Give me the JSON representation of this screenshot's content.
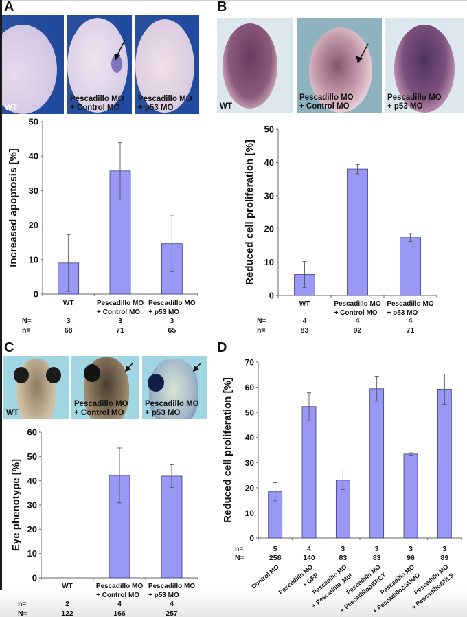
{
  "panels": {
    "A": {
      "letter": "A",
      "photos": [
        {
          "caption": "WT"
        },
        {
          "caption": "Pescadillo MO\n+ Control MO"
        },
        {
          "caption": "Pescadillo MO\n+ p53 MO"
        }
      ]
    },
    "B": {
      "letter": "B",
      "photos": [
        {
          "caption": "WT"
        },
        {
          "caption": "Pescadillo MO\n+ Control MO"
        },
        {
          "caption": "Pescadillo MO\n+ p53 MO"
        }
      ]
    },
    "C": {
      "letter": "C",
      "photos": [
        {
          "caption": "WT"
        },
        {
          "caption": "Pescadillo MO\n+ Control MO"
        },
        {
          "caption": "Pescadillo MO\n+ p53 MO"
        }
      ]
    },
    "D": {
      "letter": "D"
    }
  },
  "colors": {
    "bar": "#9999f5",
    "bar_edge": "#3a3a8a",
    "axis": "#666666"
  },
  "chart_data": [
    {
      "id": "A",
      "type": "bar",
      "title": "",
      "xlabel": "",
      "ylabel": "Increased apoptosis [%]",
      "ylim": [
        0,
        50
      ],
      "yticks": [
        0,
        10,
        20,
        30,
        40,
        50
      ],
      "grid": false,
      "categories": [
        [
          "WT"
        ],
        [
          "Pescadillo MO",
          "+ Control MO"
        ],
        [
          "Pescadillo MO",
          "+ p53 MO"
        ]
      ],
      "values": [
        9,
        35.7,
        14.6
      ],
      "errors": [
        8.2,
        8.2,
        8.1
      ],
      "count_rows": [
        {
          "label": "N=",
          "values": [
            "3",
            "3",
            "3"
          ]
        },
        {
          "label": "n=",
          "values": [
            "68",
            "71",
            "65"
          ]
        }
      ]
    },
    {
      "id": "B",
      "type": "bar",
      "title": "",
      "xlabel": "",
      "ylabel": "Reduced cell proliferation [%]",
      "ylim": [
        0,
        50
      ],
      "yticks": [
        0,
        10,
        20,
        30,
        40,
        50
      ],
      "grid": false,
      "categories": [
        [
          "WT"
        ],
        [
          "Pescadillo MO",
          "+ Control MO"
        ],
        [
          "Pescadillo MO",
          "+ p53 MO"
        ]
      ],
      "values": [
        6.3,
        38,
        17.4
      ],
      "errors": [
        3.9,
        1.4,
        1.2
      ],
      "count_rows": [
        {
          "label": "N=",
          "values": [
            "4",
            "4",
            "4"
          ]
        },
        {
          "label": "n=",
          "values": [
            "83",
            "92",
            "71"
          ]
        }
      ]
    },
    {
      "id": "C",
      "type": "bar",
      "title": "",
      "xlabel": "",
      "ylabel": "Eye phenotype [%]",
      "ylim": [
        0,
        60
      ],
      "yticks": [
        0,
        10,
        20,
        30,
        40,
        50,
        60
      ],
      "grid": false,
      "categories": [
        [
          "WT"
        ],
        [
          "Pescadillo MO",
          "+ Control MO"
        ],
        [
          "Pescadillo MO",
          "+ p53 MO"
        ]
      ],
      "values": [
        0,
        42.2,
        41.9
      ],
      "errors": [
        0,
        11.3,
        4.7
      ],
      "count_rows": [
        {
          "label": "n=",
          "values": [
            "2",
            "4",
            "4"
          ]
        },
        {
          "label": "N=",
          "values": [
            "122",
            "166",
            "257"
          ]
        }
      ]
    },
    {
      "id": "D",
      "type": "bar",
      "title": "",
      "xlabel": "",
      "ylabel": "Reduced cell proliferation [%]",
      "ylim": [
        0,
        70
      ],
      "yticks": [
        0,
        10,
        20,
        30,
        40,
        50,
        60,
        70
      ],
      "grid": false,
      "categories": [
        [
          "Control MO"
        ],
        [
          "Pescadillo MO",
          "+ GFP"
        ],
        [
          "Pescadillo MO",
          "+ Pescadillo_Mut"
        ],
        [
          "Pescadillo MO",
          "+ PescadilloΔBRCT"
        ],
        [
          "Pescadillo MO",
          "+ PescadilloΔSUMO"
        ],
        [
          "Pescadillo MO",
          "+ PescadilloΔNLS"
        ]
      ],
      "values": [
        18.4,
        52.3,
        23,
        59.4,
        33.4,
        59.2
      ],
      "errors": [
        3.6,
        5.5,
        3.7,
        5,
        0.5,
        6
      ],
      "count_rows": [
        {
          "label": "n=",
          "values": [
            "5",
            "4",
            "3",
            "3",
            "3",
            "3"
          ]
        },
        {
          "label": "N=",
          "values": [
            "258",
            "140",
            "83",
            "83",
            "96",
            "89"
          ]
        }
      ]
    }
  ]
}
